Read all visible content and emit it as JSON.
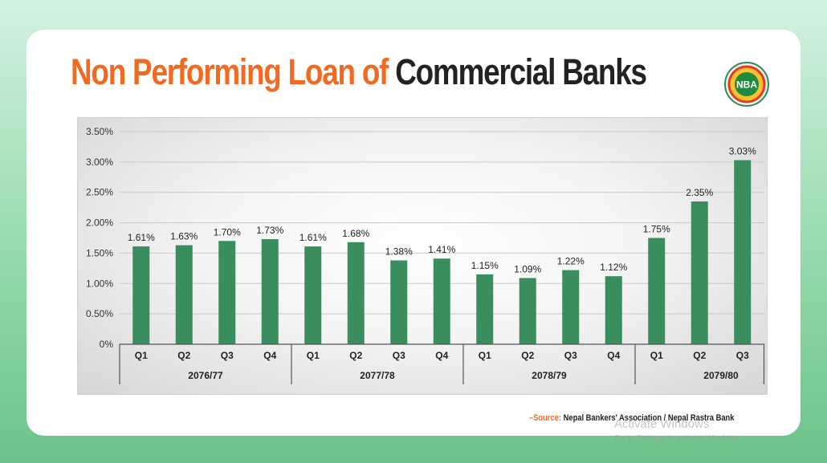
{
  "title": {
    "part1": "Non Performing Loan of",
    "part2": "Commercial Banks"
  },
  "logo": {
    "text": "NBA",
    "icon": "nba-logo-icon"
  },
  "source": {
    "label": "–Source:",
    "text": "Nepal Bankers' Association / Nepal Rastra Bank"
  },
  "watermark": {
    "line1": "Activate Windows",
    "line2": "Go to Settings to activate Windows."
  },
  "colors": {
    "bar": "#3a8d5c",
    "title_accent": "#f26a21",
    "title_dark": "#222222"
  },
  "chart_data": {
    "type": "bar",
    "title": "",
    "xlabel": "",
    "ylabel": "",
    "ylim": [
      0,
      3.5
    ],
    "y_ticks": [
      "0%",
      "0.50%",
      "1.00%",
      "1.50%",
      "2.00%",
      "2.50%",
      "3.00%",
      "3.50%"
    ],
    "groups": [
      {
        "name": "2076/77",
        "categories": [
          "Q1",
          "Q2",
          "Q3",
          "Q4"
        ],
        "values": [
          1.61,
          1.63,
          1.7,
          1.73
        ],
        "labels": [
          "1.61%",
          "1.63%",
          "1.70%",
          "1.73%"
        ]
      },
      {
        "name": "2077/78",
        "categories": [
          "Q1",
          "Q2",
          "Q3",
          "Q4"
        ],
        "values": [
          1.61,
          1.68,
          1.38,
          1.41
        ],
        "labels": [
          "1.61%",
          "1.68%",
          "1.38%",
          "1.41%"
        ]
      },
      {
        "name": "2078/79",
        "categories": [
          "Q1",
          "Q2",
          "Q3",
          "Q4"
        ],
        "values": [
          1.15,
          1.09,
          1.22,
          1.12
        ],
        "labels": [
          "1.15%",
          "1.09%",
          "1.22%",
          "1.12%"
        ]
      },
      {
        "name": "2079/80",
        "categories": [
          "Q1",
          "Q2",
          "Q3"
        ],
        "values": [
          1.75,
          2.35,
          3.03
        ],
        "labels": [
          "1.75%",
          "2.35%",
          "3.03%"
        ]
      }
    ],
    "grid": true,
    "legend": "none"
  }
}
